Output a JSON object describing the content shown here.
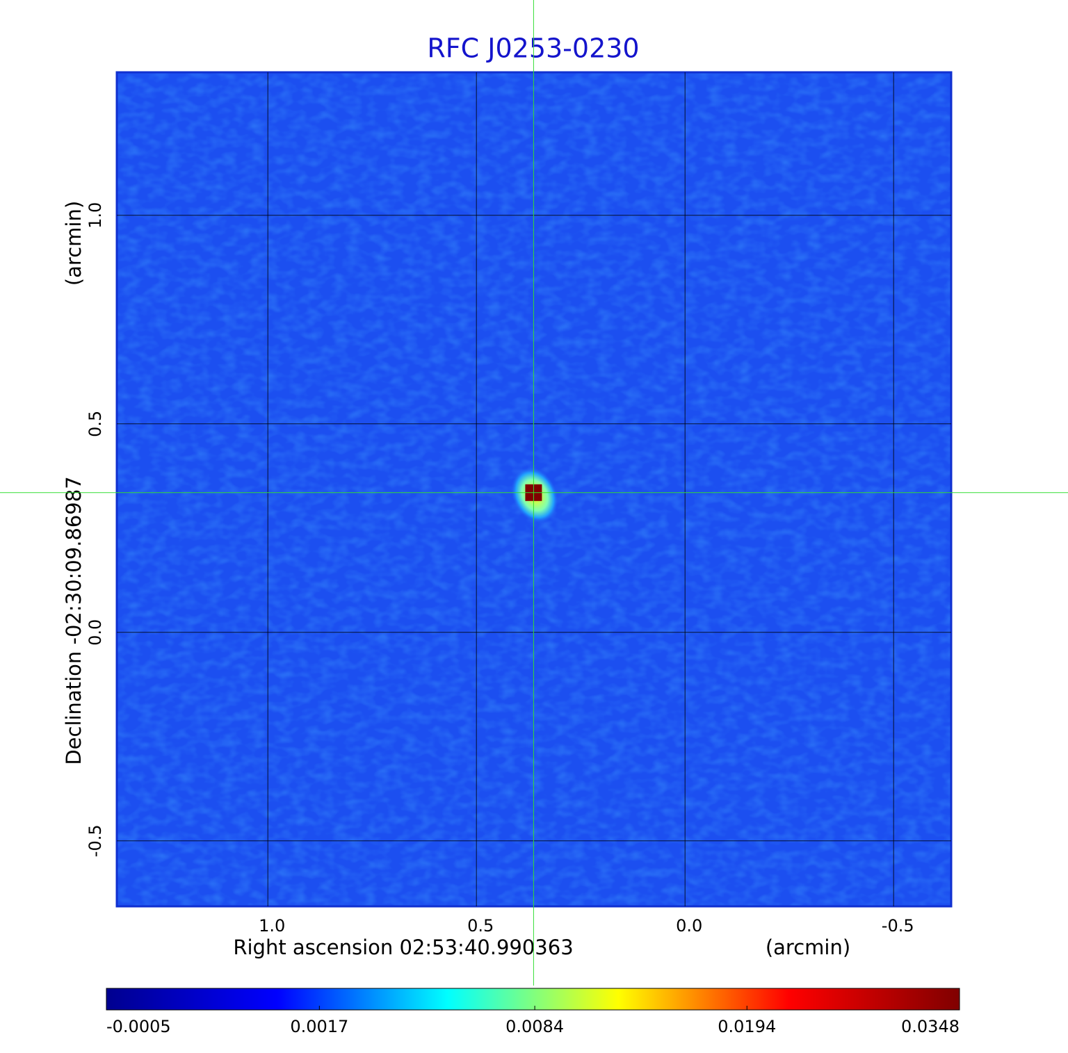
{
  "chart_data": {
    "type": "image",
    "title": "RFC J0253-0230",
    "x_label": "Right ascension  02:53:40.990363",
    "x_unit": "(arcmin)",
    "y_label": "Declination  -02:30:09.86987",
    "y_unit": "(arcmin)",
    "xlim": [
      1.362,
      -0.638
    ],
    "ylim": [
      -0.657,
      1.343
    ],
    "xticks": [
      {
        "value": 1,
        "label": "1.0"
      },
      0.5,
      {
        "value": 0,
        "label": "0.0"
      },
      -0.5
    ],
    "yticks": [
      -0.5,
      {
        "value": 0,
        "label": "0.0"
      },
      0.5,
      {
        "value": 1,
        "label": "1.0"
      }
    ],
    "grid": true,
    "crosshair": {
      "x": 0.363,
      "y": 0.335,
      "color": "#33dd33"
    },
    "source": {
      "x": 0.363,
      "y": 0.335,
      "value": 0.0348
    },
    "colorbar": {
      "clim": [
        -0.0005,
        0.0348
      ],
      "scale": "sqrt",
      "ticks": [
        -0.0005,
        0.0017,
        0.0084,
        0.0194,
        0.0348
      ],
      "colors": [
        "#00008f",
        "#0000ff",
        "#00ffff",
        "#ffff00",
        "#ff0000",
        "#800000"
      ]
    }
  }
}
